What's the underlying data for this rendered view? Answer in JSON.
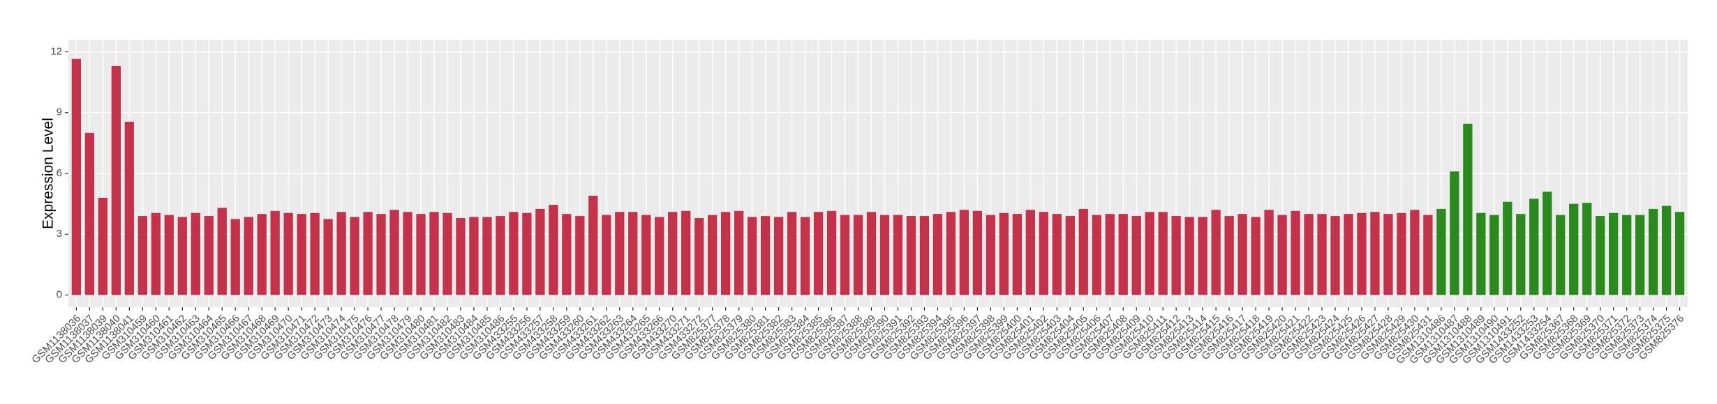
{
  "chart_data": {
    "type": "bar",
    "y_label": "Expression Level",
    "ylim": [
      -0.6,
      12.6
    ],
    "yticks": [
      0,
      3,
      6,
      9,
      12
    ],
    "grid": true,
    "series": [
      {
        "color": "#c3314a",
        "categories": [
          "GSM1138036",
          "GSM1138037",
          "GSM1138039",
          "GSM1138040",
          "GSM1138041",
          "GSM310459",
          "GSM310460",
          "GSM310461",
          "GSM310462",
          "GSM310463",
          "GSM310464",
          "GSM310465",
          "GSM310466",
          "GSM310467",
          "GSM310468",
          "GSM310469",
          "GSM310470",
          "GSM310471",
          "GSM310472",
          "GSM310473",
          "GSM310474",
          "GSM310475",
          "GSM310476",
          "GSM310477",
          "GSM310478",
          "GSM310479",
          "GSM310480",
          "GSM310481",
          "GSM310482",
          "GSM310483",
          "GSM310484",
          "GSM310485",
          "GSM310486",
          "GSM433255",
          "GSM433256",
          "GSM433257",
          "GSM433258",
          "GSM433259",
          "GSM433260",
          "GSM433261",
          "GSM433262",
          "GSM433263",
          "GSM433264",
          "GSM433265",
          "GSM433266",
          "GSM433270",
          "GSM433271",
          "GSM433272",
          "GSM825377",
          "GSM825378",
          "GSM825379",
          "GSM825380",
          "GSM825381",
          "GSM825382",
          "GSM825383",
          "GSM825384",
          "GSM825385",
          "GSM825386",
          "GSM825387",
          "GSM825388",
          "GSM825389",
          "GSM825390",
          "GSM825391",
          "GSM825392",
          "GSM825393",
          "GSM825394",
          "GSM825395",
          "GSM825396",
          "GSM825397",
          "GSM825398",
          "GSM825399",
          "GSM825400",
          "GSM825401",
          "GSM825402",
          "GSM825403",
          "GSM825404",
          "GSM825405",
          "GSM825406",
          "GSM825407",
          "GSM825408",
          "GSM825409",
          "GSM825410",
          "GSM825411",
          "GSM825412",
          "GSM825413",
          "GSM825414",
          "GSM825415",
          "GSM825416",
          "GSM825417",
          "GSM825418",
          "GSM825419",
          "GSM825420",
          "GSM825421",
          "GSM825422",
          "GSM825423",
          "GSM825424",
          "GSM825425",
          "GSM825426",
          "GSM825427",
          "GSM825428",
          "GSM825429",
          "GSM825430",
          "GSM825431"
        ],
        "values": [
          11.65,
          8.0,
          4.8,
          11.3,
          8.55,
          3.9,
          4.05,
          3.95,
          3.85,
          4.05,
          3.9,
          4.3,
          3.75,
          3.85,
          4.0,
          4.15,
          4.05,
          4.0,
          4.05,
          3.75,
          4.1,
          3.85,
          4.1,
          4.0,
          4.2,
          4.1,
          4.0,
          4.1,
          4.05,
          3.8,
          3.85,
          3.85,
          3.9,
          4.1,
          4.05,
          4.25,
          4.45,
          4.0,
          3.9,
          4.9,
          3.95,
          4.1,
          4.1,
          3.95,
          3.85,
          4.1,
          4.15,
          3.8,
          3.95,
          4.1,
          4.15,
          3.85,
          3.9,
          3.85,
          4.1,
          3.85,
          4.1,
          4.15,
          3.95,
          3.95,
          4.1,
          3.95,
          3.95,
          3.9,
          3.9,
          4.0,
          4.1,
          4.2,
          4.15,
          3.95,
          4.05,
          4.0,
          4.2,
          4.1,
          4.0,
          3.9,
          4.25,
          3.95,
          4.0,
          4.0,
          3.9,
          4.1,
          4.1,
          3.9,
          3.85,
          3.85,
          4.2,
          3.9,
          4.0,
          3.85,
          4.2,
          3.95,
          4.15,
          4.0,
          4.0,
          3.9,
          4.0,
          4.05,
          4.1,
          4.0,
          4.05,
          4.2,
          3.95
        ]
      },
      {
        "color": "#2b8a1e",
        "categories": [
          "GSM1310486",
          "GSM1310487",
          "GSM1310488",
          "GSM1310489",
          "GSM1310490",
          "GSM1310491",
          "GSM1433252",
          "GSM1433253",
          "GSM1433254",
          "GSM825367",
          "GSM825368",
          "GSM825369",
          "GSM825370",
          "GSM825371",
          "GSM825372",
          "GSM825373",
          "GSM825374",
          "GSM825375",
          "GSM825376"
        ],
        "values": [
          4.25,
          6.1,
          8.45,
          4.05,
          3.95,
          4.6,
          4.0,
          4.75,
          5.1,
          3.95,
          4.5,
          4.55,
          3.9,
          4.05,
          3.95,
          3.95,
          4.25,
          4.4,
          4.1
        ]
      }
    ]
  }
}
